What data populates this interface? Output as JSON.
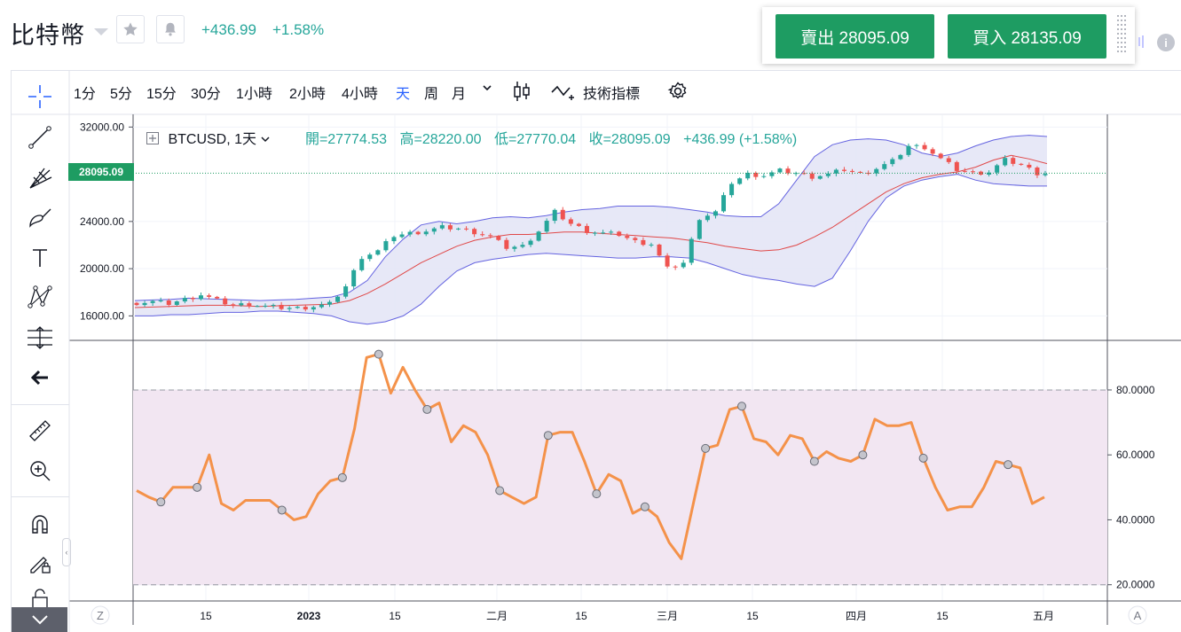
{
  "header": {
    "symbol_name": "比特幣",
    "change_abs": "+436.99",
    "change_pct": "+1.58%",
    "sell_label": "賣出 28095.09",
    "buy_label": "買入 28135.09"
  },
  "toolbar": {
    "intervals": [
      "1分",
      "5分",
      "15分",
      "30分",
      "1小時",
      "2小時",
      "4小時",
      "天",
      "周",
      "月"
    ],
    "active_interval": "天",
    "indicators_label": "技術指標"
  },
  "legend": {
    "symbol": "BTCUSD, 1天",
    "open": "開=27774.53",
    "high": "高=28220.00",
    "low": "低=27770.04",
    "close": "收=28095.09",
    "change": "+436.99 (+1.58%)"
  },
  "price_label": "28095.09",
  "colors": {
    "up": "#26a69a",
    "down": "#ef5350",
    "accent": "#2962ff",
    "buy_sell": "#1e9c62",
    "rsi_line": "#f4924a",
    "bb_fill": "#e3e4f6",
    "bb_band": "#6463e0",
    "ma": "#e04848"
  },
  "price_axis": {
    "ticks": [
      "32000.00",
      "24000.00",
      "20000.00",
      "16000.00"
    ]
  },
  "rsi_axis": {
    "ticks": [
      "80.0000",
      "60.0000",
      "40.0000",
      "20.0000"
    ]
  },
  "time_axis": {
    "labels": [
      "15",
      "2023",
      "15",
      "二月",
      "15",
      "三月",
      "15",
      "四月",
      "15",
      "五月"
    ],
    "z_label": "Z",
    "a_label": "A"
  },
  "chart_data": {
    "type": "line",
    "title": "BTCUSD, 1天",
    "price_ylim": [
      14000,
      33000
    ],
    "bollinger_upper": [
      17300,
      17350,
      17400,
      17500,
      17450,
      17400,
      17350,
      17300,
      17350,
      17400,
      17500,
      17600,
      18000,
      19000,
      21000,
      22500,
      23700,
      24000,
      23800,
      24000,
      24300,
      24400,
      24300,
      24500,
      24800,
      25000,
      25100,
      25300,
      25300,
      25300,
      25200,
      25000,
      24800,
      24500,
      24400,
      24400,
      25500,
      27500,
      29500,
      30500,
      30900,
      31000,
      30900,
      30500,
      29800,
      29500,
      29800,
      30400,
      30900,
      31200,
      31300,
      31200
    ],
    "bollinger_lower": [
      16000,
      16000,
      16100,
      16100,
      16200,
      16300,
      16300,
      16400,
      16400,
      16300,
      16200,
      16000,
      15500,
      15300,
      15500,
      16000,
      17000,
      18500,
      19800,
      20500,
      20800,
      21000,
      21200,
      21300,
      21200,
      21100,
      21000,
      20900,
      20900,
      21000,
      21000,
      20900,
      20500,
      20000,
      19500,
      19200,
      19000,
      18700,
      18500,
      19200,
      21500,
      24000,
      26000,
      27000,
      27500,
      27800,
      28000,
      27500,
      27200,
      27100,
      27000,
      27000
    ],
    "ma20": [
      16700,
      16750,
      16800,
      16850,
      16900,
      16900,
      16850,
      16800,
      16850,
      16900,
      16950,
      17000,
      17300,
      17900,
      18700,
      19600,
      20500,
      21200,
      21900,
      22400,
      22700,
      22900,
      22900,
      23000,
      23100,
      23100,
      23000,
      22900,
      22800,
      22700,
      22600,
      22400,
      22200,
      21900,
      21700,
      21500,
      21600,
      22000,
      22700,
      23500,
      24500,
      25500,
      26500,
      27200,
      27700,
      28000,
      28200,
      28600,
      29200,
      29600,
      29300,
      28900
    ],
    "close": [
      17100,
      17200,
      17050,
      17400,
      17800,
      17300,
      16900,
      17000,
      16800,
      16700,
      16650,
      16800,
      17000,
      18500,
      21000,
      21500,
      22800,
      23000,
      23200,
      23500,
      23400,
      23100,
      22700,
      21800,
      21900,
      23200,
      24800,
      23800,
      23200,
      23000,
      22900,
      22300,
      22100,
      20000,
      20500,
      24300,
      24800,
      27300,
      28000,
      27900,
      28300,
      28100,
      27800,
      28000,
      28400,
      28000,
      28500,
      29100,
      30400,
      30300,
      29300,
      28400,
      28100,
      28200,
      29200,
      28800,
      28095
    ],
    "rsi": [
      49,
      47,
      45.5,
      50,
      50,
      50,
      60,
      45,
      43,
      46,
      46,
      46,
      43,
      40,
      41,
      48,
      52,
      53,
      68,
      90,
      91,
      79,
      87,
      80,
      74,
      76,
      64,
      69,
      67,
      60,
      49,
      47,
      45,
      47,
      66,
      67,
      67,
      58,
      48,
      54,
      52,
      42,
      44,
      41,
      33,
      28,
      45,
      62,
      63,
      74,
      75,
      65,
      64,
      60,
      66,
      65,
      58,
      61,
      59,
      58,
      60,
      71,
      69,
      69,
      70,
      59,
      50,
      43,
      44,
      44,
      50,
      58,
      57,
      56,
      45,
      47
    ],
    "rsi_ylim": [
      15,
      95
    ],
    "rsi_bands": [
      80,
      20
    ]
  }
}
